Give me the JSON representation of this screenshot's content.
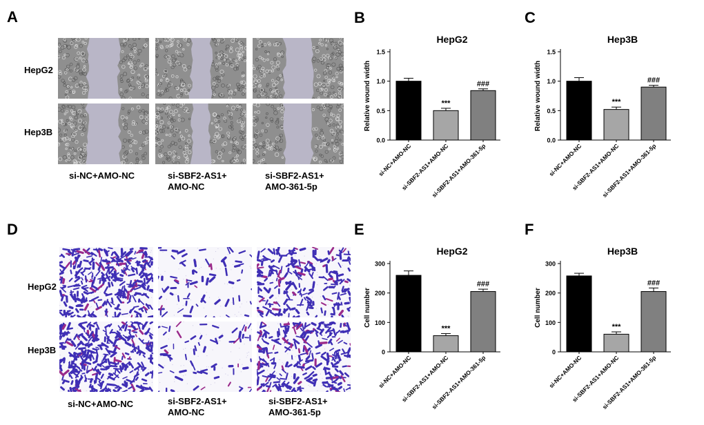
{
  "panels": {
    "A": {
      "letter": "A",
      "rows": [
        "HepG2",
        "Hep3B"
      ],
      "conditions": [
        "si-NC+AMO-NC",
        "si-SBF2-AS1+\nAMO-NC",
        "si-SBF2-AS1+\nAMO-361-5p"
      ]
    },
    "D": {
      "letter": "D",
      "rows": [
        "HepG2",
        "Hep3B"
      ],
      "conditions": [
        "si-NC+AMO-NC",
        "si-SBF2-AS1+\nAMO-NC",
        "si-SBF2-AS1+\nAMO-361-5p"
      ]
    }
  },
  "colors": {
    "bar_control": "#000000",
    "bar_knockdown": "#a6a6a6",
    "bar_rescue": "#808080",
    "wound_cells": "#8f8f8f",
    "wound_gap": "#b9b6c7",
    "transwell_stain": "#3f2fb5"
  },
  "chart_data": [
    {
      "letter": "B",
      "type": "bar",
      "title": "HepG2",
      "ylabel": "Relative wound width",
      "categories": [
        "si-NC+AMO-NC",
        "si-SBF2-AS1+AMO-NC",
        "si-SBF2-AS1+AMO-361-5p"
      ],
      "values": [
        1.0,
        0.5,
        0.84
      ],
      "errors": [
        0.05,
        0.04,
        0.03
      ],
      "annotations": [
        "",
        "***",
        "###"
      ],
      "ylim": [
        0,
        1.5
      ],
      "yticks": [
        "0.0",
        "0.5",
        "1.0",
        "1.5"
      ]
    },
    {
      "letter": "C",
      "type": "bar",
      "title": "Hep3B",
      "ylabel": "Relative wound width",
      "categories": [
        "si-NC+AMO-NC",
        "si-SBF2-AS1+AMO-NC",
        "si-SBF2-AS1+AMO-361-5p"
      ],
      "values": [
        1.0,
        0.52,
        0.9
      ],
      "errors": [
        0.06,
        0.04,
        0.03
      ],
      "annotations": [
        "",
        "***",
        "###"
      ],
      "ylim": [
        0,
        1.5
      ],
      "yticks": [
        "0.0",
        "0.5",
        "1.0",
        "1.5"
      ]
    },
    {
      "letter": "E",
      "type": "bar",
      "title": "HepG2",
      "ylabel": "Cell number",
      "categories": [
        "si-NC+AMO-NC",
        "si-SBF2-AS1+AMO-NC",
        "si-SBF2-AS1+AMO-361-5p"
      ],
      "values": [
        260,
        55,
        205
      ],
      "errors": [
        15,
        7,
        8
      ],
      "annotations": [
        "",
        "***",
        "###"
      ],
      "ylim": [
        0,
        300
      ],
      "yticks": [
        "0",
        "100",
        "200",
        "300"
      ]
    },
    {
      "letter": "F",
      "type": "bar",
      "title": "Hep3B",
      "ylabel": "Cell number",
      "categories": [
        "si-NC+AMO-NC",
        "si-SBF2-AS1+AMO-NC",
        "si-SBF2-AS1+AMO-361-5p"
      ],
      "values": [
        258,
        60,
        205
      ],
      "errors": [
        9,
        8,
        12
      ],
      "annotations": [
        "",
        "***",
        "###"
      ],
      "ylim": [
        0,
        300
      ],
      "yticks": [
        "0",
        "100",
        "200",
        "300"
      ]
    }
  ]
}
